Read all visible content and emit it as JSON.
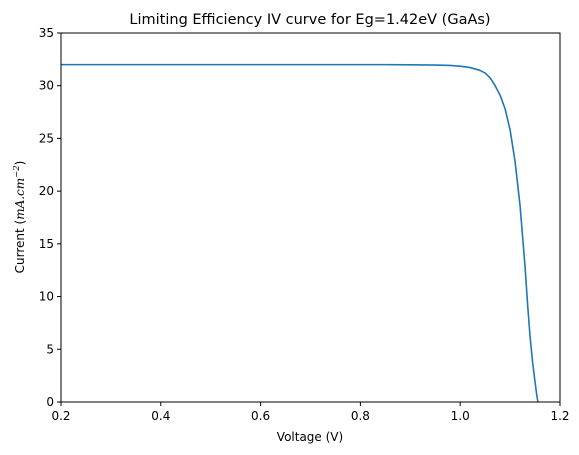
{
  "chart_data": {
    "type": "line",
    "title": "Limiting Efficiency IV curve for Eg=1.42eV (GaAs)",
    "xlabel": "Voltage (V)",
    "ylabel": {
      "prefix": "Current (",
      "unit": "mA.cm",
      "exponent": "−2",
      "suffix": ")"
    },
    "xlim": [
      0.2,
      1.2
    ],
    "ylim": [
      0,
      35
    ],
    "xticks": [
      "0.2",
      "0.4",
      "0.6",
      "0.8",
      "1.0",
      "1.2"
    ],
    "yticks": [
      "0",
      "5",
      "10",
      "15",
      "20",
      "25",
      "30",
      "35"
    ],
    "grid": false,
    "series_color": "#1f77b4",
    "series": [
      {
        "x": [
          0.2,
          0.3,
          0.4,
          0.5,
          0.6,
          0.7,
          0.8,
          0.85,
          0.9,
          0.95,
          0.98,
          1.0,
          1.02,
          1.04,
          1.05,
          1.06,
          1.07,
          1.08,
          1.09,
          1.1,
          1.11,
          1.12,
          1.13,
          1.135,
          1.14,
          1.145,
          1.15,
          1.153,
          1.155,
          1.156
        ],
        "values": [
          32.0,
          32.0,
          32.0,
          32.0,
          32.0,
          32.0,
          32.0,
          32.0,
          31.98,
          31.96,
          31.92,
          31.85,
          31.72,
          31.45,
          31.2,
          30.75,
          30.0,
          29.1,
          27.8,
          25.8,
          22.8,
          18.6,
          12.8,
          9.3,
          6.2,
          3.8,
          1.9,
          0.8,
          0.2,
          0.0
        ]
      }
    ]
  }
}
